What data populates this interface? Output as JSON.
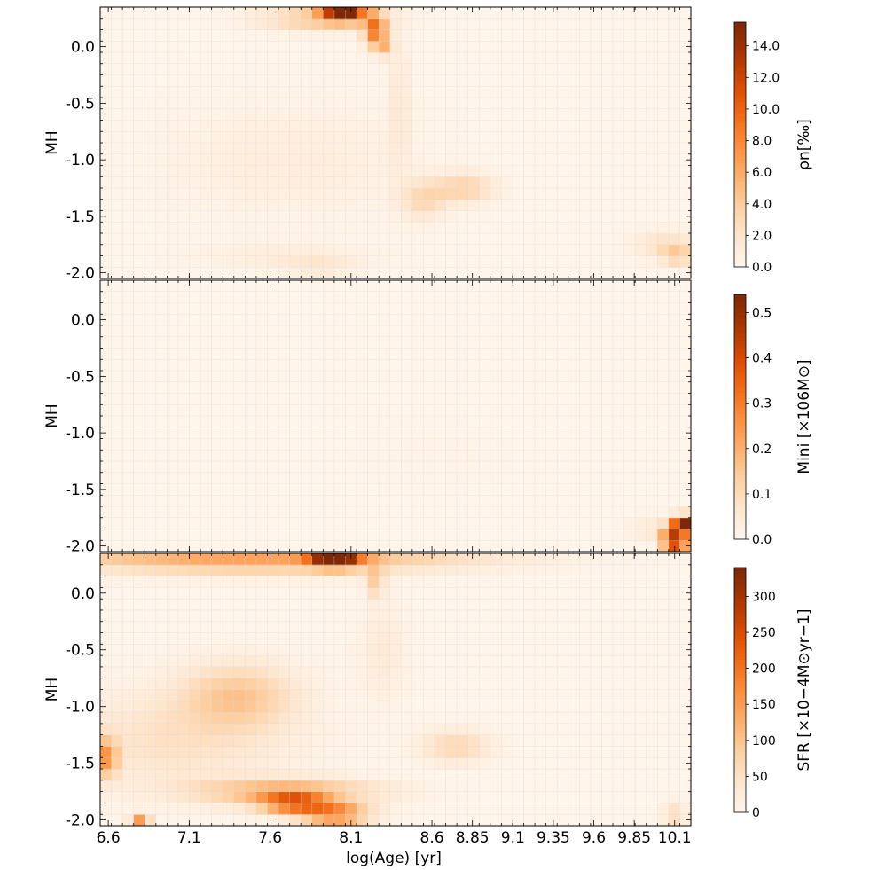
{
  "chart_data": {
    "type": "heatmap",
    "x_axis": {
      "label": "log(Age) [yr]",
      "range": [
        6.55,
        10.2
      ],
      "tick_values": [
        6.6,
        7.1,
        7.6,
        8.1,
        8.6,
        8.85,
        9.1,
        9.35,
        9.6,
        9.85,
        10.1
      ],
      "tick_labels": [
        "6.6",
        "7.1",
        "7.6",
        "8.1",
        "8.6",
        "8.85",
        "9.1",
        "9.35",
        "9.6",
        "9.85",
        "10.1"
      ],
      "bins": 53
    },
    "y_axis": {
      "label": "MH",
      "range": [
        -2.05,
        0.35
      ],
      "tick_values": [
        0.0,
        -0.5,
        -1.0,
        -1.5,
        -2.0
      ],
      "tick_labels": [
        "0.0",
        "-0.5",
        "-1.0",
        "-1.5",
        "-2.0"
      ],
      "bins": 24
    },
    "colormap": "Oranges",
    "grid": true,
    "panels": [
      {
        "name": "rho",
        "y_label": "MH",
        "colorbar": {
          "label": "ρn[‰]",
          "min": 0,
          "max": 15.5,
          "ticks": [
            "0.0",
            "2.0",
            "4.0",
            "6.0",
            "8.0",
            "10.0",
            "12.0",
            "14.0"
          ],
          "tick_values": [
            0,
            2,
            4,
            6,
            8,
            10,
            12,
            14
          ]
        },
        "blobs": [
          {
            "x": 8.05,
            "y": 0.3,
            "sx": 0.09,
            "sy": 0.05,
            "v": 15.0
          },
          {
            "x": 7.9,
            "y": 0.25,
            "sx": 0.25,
            "sy": 0.07,
            "v": 4.5
          },
          {
            "x": 8.25,
            "y": 0.15,
            "sx": 0.05,
            "sy": 0.1,
            "v": 9.0
          },
          {
            "x": 8.3,
            "y": 0.0,
            "sx": 0.04,
            "sy": 0.06,
            "v": 4.0
          },
          {
            "x": 8.4,
            "y": -0.5,
            "sx": 0.05,
            "sy": 0.45,
            "v": 1.5
          },
          {
            "x": 8.8,
            "y": -1.25,
            "sx": 0.13,
            "sy": 0.09,
            "v": 3.5
          },
          {
            "x": 8.55,
            "y": -1.35,
            "sx": 0.1,
            "sy": 0.12,
            "v": 3.0
          },
          {
            "x": 7.7,
            "y": -1.0,
            "sx": 0.5,
            "sy": 0.35,
            "v": 1.0
          },
          {
            "x": 7.7,
            "y": -1.85,
            "sx": 0.35,
            "sy": 0.07,
            "v": 1.2
          },
          {
            "x": 7.9,
            "y": -1.95,
            "sx": 0.15,
            "sy": 0.05,
            "v": 1.8
          },
          {
            "x": 10.05,
            "y": -1.75,
            "sx": 0.14,
            "sy": 0.08,
            "v": 2.5
          },
          {
            "x": 10.12,
            "y": -1.85,
            "sx": 0.07,
            "sy": 0.06,
            "v": 3.5
          }
        ]
      },
      {
        "name": "mass",
        "y_label": "MH",
        "colorbar": {
          "label": "Mini [×106M⊙]",
          "min": 0,
          "max": 0.54,
          "ticks": [
            "0.0",
            "0.1",
            "0.2",
            "0.3",
            "0.4",
            "0.5"
          ],
          "tick_values": [
            0,
            0.1,
            0.2,
            0.3,
            0.4,
            0.5
          ]
        },
        "blobs": [
          {
            "x": 10.15,
            "y": -1.8,
            "sx": 0.04,
            "sy": 0.05,
            "v": 0.55
          },
          {
            "x": 10.08,
            "y": -1.95,
            "sx": 0.04,
            "sy": 0.08,
            "v": 0.45
          },
          {
            "x": 10.15,
            "y": -1.95,
            "sx": 0.03,
            "sy": 0.05,
            "v": 0.35
          },
          {
            "x": 10.0,
            "y": -1.85,
            "sx": 0.12,
            "sy": 0.07,
            "v": 0.06
          },
          {
            "x": 8.6,
            "y": -1.2,
            "sx": 0.3,
            "sy": 0.2,
            "v": 0.01
          }
        ]
      },
      {
        "name": "sfr",
        "y_label": "MH",
        "colorbar": {
          "label": "SFR [×10−4M⊙yr−1]",
          "min": 0,
          "max": 340,
          "ticks": [
            "0",
            "50",
            "100",
            "150",
            "200",
            "250",
            "300"
          ],
          "tick_values": [
            0,
            50,
            100,
            150,
            200,
            250,
            300
          ]
        },
        "blobs": [
          {
            "x": 7.5,
            "y": 0.3,
            "sx": 0.9,
            "sy": 0.06,
            "v": 140
          },
          {
            "x": 8.0,
            "y": 0.3,
            "sx": 0.1,
            "sy": 0.05,
            "v": 330
          },
          {
            "x": 7.5,
            "y": 0.18,
            "sx": 0.8,
            "sy": 0.05,
            "v": 40
          },
          {
            "x": 8.25,
            "y": 0.1,
            "sx": 0.04,
            "sy": 0.1,
            "v": 80
          },
          {
            "x": 7.4,
            "y": -0.9,
            "sx": 0.25,
            "sy": 0.2,
            "v": 90
          },
          {
            "x": 7.0,
            "y": -1.3,
            "sx": 0.5,
            "sy": 0.3,
            "v": 50
          },
          {
            "x": 6.6,
            "y": -1.45,
            "sx": 0.04,
            "sy": 0.12,
            "v": 150
          },
          {
            "x": 7.7,
            "y": -1.75,
            "sx": 0.4,
            "sy": 0.08,
            "v": 120
          },
          {
            "x": 7.75,
            "y": -1.85,
            "sx": 0.15,
            "sy": 0.06,
            "v": 200
          },
          {
            "x": 8.0,
            "y": -1.95,
            "sx": 0.15,
            "sy": 0.05,
            "v": 230
          },
          {
            "x": 6.8,
            "y": -2.0,
            "sx": 0.04,
            "sy": 0.04,
            "v": 150
          },
          {
            "x": 8.75,
            "y": -1.35,
            "sx": 0.15,
            "sy": 0.1,
            "v": 70
          },
          {
            "x": 8.3,
            "y": -0.5,
            "sx": 0.1,
            "sy": 0.3,
            "v": 30
          },
          {
            "x": 10.1,
            "y": -1.95,
            "sx": 0.05,
            "sy": 0.08,
            "v": 60
          }
        ]
      }
    ]
  }
}
